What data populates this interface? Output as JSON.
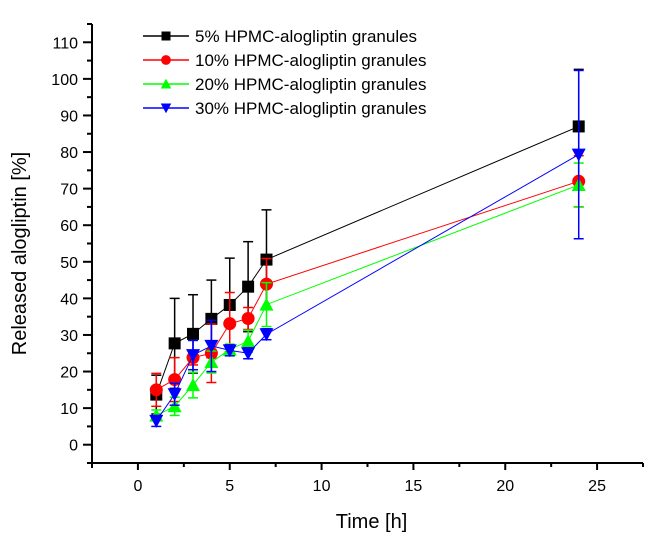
{
  "chart_data": {
    "type": "line",
    "title": "",
    "xlabel": "Time [h]",
    "ylabel": "Released alogliptin [%]",
    "xlim": [
      -2.5,
      27.5
    ],
    "ylim": [
      -5,
      115
    ],
    "xticks": [
      0,
      5,
      10,
      15,
      20,
      25
    ],
    "yticks": [
      0,
      10,
      20,
      30,
      40,
      50,
      60,
      70,
      80,
      90,
      100,
      110
    ],
    "grid": false,
    "legend_position": "top-left",
    "x": [
      1,
      2,
      3,
      4,
      5,
      6,
      7,
      24
    ],
    "series": [
      {
        "name": "5% HPMC-alogliptin granules",
        "color": "#000000",
        "marker": "square",
        "values": [
          13.7,
          27.7,
          30.3,
          34.4,
          38.2,
          43.2,
          50.6,
          87.0
        ],
        "errors": [
          5.3,
          12.3,
          10.7,
          10.6,
          12.8,
          12.3,
          13.6,
          15.6
        ]
      },
      {
        "name": "10% HPMC-alogliptin granules",
        "color": "#ff0000",
        "marker": "circle",
        "values": [
          15.0,
          17.8,
          23.8,
          25.0,
          33.1,
          34.5,
          43.9,
          72.0
        ],
        "errors": [
          4.5,
          6.0,
          2.0,
          8.0,
          8.5,
          3.0,
          7.0,
          7.0
        ]
      },
      {
        "name": "20% HPMC-alogliptin granules",
        "color": "#00ff00",
        "marker": "triangle-up",
        "values": [
          8.0,
          10.5,
          16.3,
          22.6,
          26.0,
          28.3,
          38.3,
          71.0
        ],
        "errors": [
          1.5,
          2.5,
          3.5,
          3.0,
          1.5,
          3.0,
          6.0,
          6.0
        ]
      },
      {
        "name": "30% HPMC-alogliptin granules",
        "color": "#0000ff",
        "marker": "triangle-down",
        "values": [
          6.5,
          13.8,
          24.5,
          27.0,
          25.8,
          25.0,
          30.2,
          79.3
        ],
        "errors": [
          1.5,
          3.0,
          4.0,
          7.0,
          1.5,
          1.5,
          1.5,
          23.0
        ]
      }
    ]
  }
}
